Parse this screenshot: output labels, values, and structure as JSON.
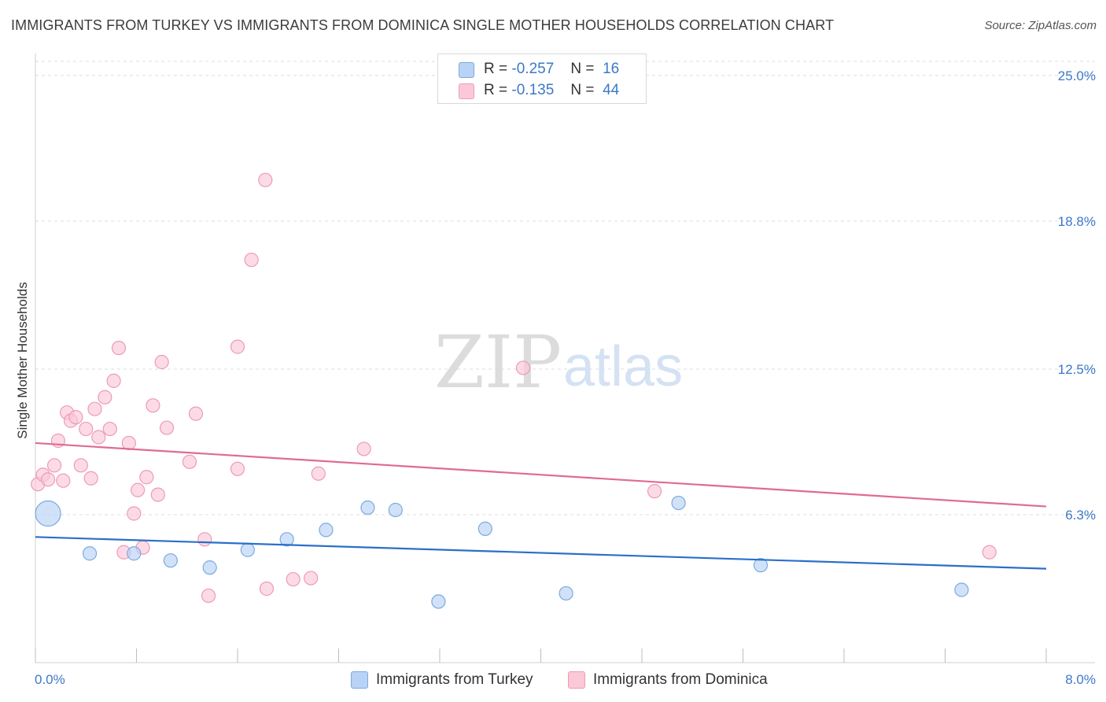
{
  "title": "IMMIGRANTS FROM TURKEY VS IMMIGRANTS FROM DOMINICA SINGLE MOTHER HOUSEHOLDS CORRELATION CHART",
  "source": "Source: ZipAtlas.com",
  "watermark": {
    "zip": "ZIP",
    "atlas": "atlas"
  },
  "legend": {
    "turkey": {
      "r_label": "R =",
      "r_value": "-0.257",
      "n_label": "N =",
      "n_value": "16"
    },
    "dominica": {
      "r_label": "R =",
      "r_value": "-0.135",
      "n_label": "N =",
      "n_value": "44"
    }
  },
  "colors": {
    "turkey_fill": "#b8d3f5",
    "turkey_stroke": "#7aaae0",
    "turkey_line": "#2a6fca",
    "dominica_fill": "#fbc8d8",
    "dominica_stroke": "#ee9ab5",
    "dominica_line": "#e06a95",
    "accent": "#3d78c8"
  },
  "chart_data": {
    "type": "scatter",
    "title": "IMMIGRANTS FROM TURKEY VS IMMIGRANTS FROM DOMINICA SINGLE MOTHER HOUSEHOLDS CORRELATION CHART",
    "xlabel": "",
    "ylabel": "Single Mother Households",
    "xlim": [
      0,
      8
    ],
    "ylim": [
      0,
      25.6
    ],
    "x_tick_labels": [
      "0.0%",
      "8.0%"
    ],
    "y_ticks": [
      6.3,
      12.5,
      18.8,
      25.0
    ],
    "y_tick_labels": [
      "6.3%",
      "12.5%",
      "18.8%",
      "25.0%"
    ],
    "grid": true,
    "legend_position": "top-center",
    "series": [
      {
        "name": "Immigrants from Turkey",
        "key": "turkey",
        "trend": {
          "x1": 0.0,
          "y1": 5.35,
          "x2": 8.0,
          "y2": 4.0
        },
        "points": [
          {
            "x": 0.1,
            "y": 6.35,
            "size": "large"
          },
          {
            "x": 0.43,
            "y": 4.65
          },
          {
            "x": 0.78,
            "y": 4.65
          },
          {
            "x": 1.07,
            "y": 4.35
          },
          {
            "x": 1.38,
            "y": 4.05
          },
          {
            "x": 1.68,
            "y": 4.8
          },
          {
            "x": 1.99,
            "y": 5.25
          },
          {
            "x": 2.3,
            "y": 5.65
          },
          {
            "x": 2.63,
            "y": 6.6
          },
          {
            "x": 2.85,
            "y": 6.5
          },
          {
            "x": 3.19,
            "y": 2.6
          },
          {
            "x": 3.56,
            "y": 5.7
          },
          {
            "x": 4.2,
            "y": 2.95
          },
          {
            "x": 5.09,
            "y": 6.8
          },
          {
            "x": 5.74,
            "y": 4.15
          },
          {
            "x": 7.33,
            "y": 3.1
          }
        ]
      },
      {
        "name": "Immigrants from Dominica",
        "key": "dominica",
        "trend": {
          "x1": 0.0,
          "y1": 9.35,
          "x2": 8.0,
          "y2": 6.65
        },
        "points": [
          {
            "x": 0.02,
            "y": 7.6
          },
          {
            "x": 0.06,
            "y": 8.0
          },
          {
            "x": 0.1,
            "y": 7.8
          },
          {
            "x": 0.15,
            "y": 8.4
          },
          {
            "x": 0.18,
            "y": 9.45
          },
          {
            "x": 0.22,
            "y": 7.75
          },
          {
            "x": 0.25,
            "y": 10.65
          },
          {
            "x": 0.28,
            "y": 10.3
          },
          {
            "x": 0.32,
            "y": 10.45
          },
          {
            "x": 0.36,
            "y": 8.4
          },
          {
            "x": 0.4,
            "y": 9.95
          },
          {
            "x": 0.44,
            "y": 7.85
          },
          {
            "x": 0.47,
            "y": 10.8
          },
          {
            "x": 0.5,
            "y": 9.6
          },
          {
            "x": 0.55,
            "y": 11.3
          },
          {
            "x": 0.59,
            "y": 9.95
          },
          {
            "x": 0.62,
            "y": 12.0
          },
          {
            "x": 0.66,
            "y": 13.4
          },
          {
            "x": 0.7,
            "y": 4.7
          },
          {
            "x": 0.74,
            "y": 9.35
          },
          {
            "x": 0.78,
            "y": 6.35
          },
          {
            "x": 0.81,
            "y": 7.35
          },
          {
            "x": 0.85,
            "y": 4.9
          },
          {
            "x": 0.88,
            "y": 7.9
          },
          {
            "x": 0.93,
            "y": 10.95
          },
          {
            "x": 0.97,
            "y": 7.15
          },
          {
            "x": 1.0,
            "y": 12.8
          },
          {
            "x": 1.04,
            "y": 10.0
          },
          {
            "x": 1.22,
            "y": 8.55
          },
          {
            "x": 1.27,
            "y": 10.6
          },
          {
            "x": 1.34,
            "y": 5.25
          },
          {
            "x": 1.37,
            "y": 2.85
          },
          {
            "x": 1.6,
            "y": 8.25
          },
          {
            "x": 1.6,
            "y": 13.45
          },
          {
            "x": 1.71,
            "y": 17.15
          },
          {
            "x": 1.83,
            "y": 3.15
          },
          {
            "x": 1.82,
            "y": 20.55
          },
          {
            "x": 2.04,
            "y": 3.55
          },
          {
            "x": 2.18,
            "y": 3.6
          },
          {
            "x": 2.24,
            "y": 8.05
          },
          {
            "x": 2.6,
            "y": 9.1
          },
          {
            "x": 3.86,
            "y": 12.55
          },
          {
            "x": 4.9,
            "y": 7.3
          },
          {
            "x": 7.55,
            "y": 4.7
          }
        ]
      }
    ]
  },
  "bottom_legend": {
    "turkey": "Immigrants from Turkey",
    "dominica": "Immigrants from Dominica"
  }
}
